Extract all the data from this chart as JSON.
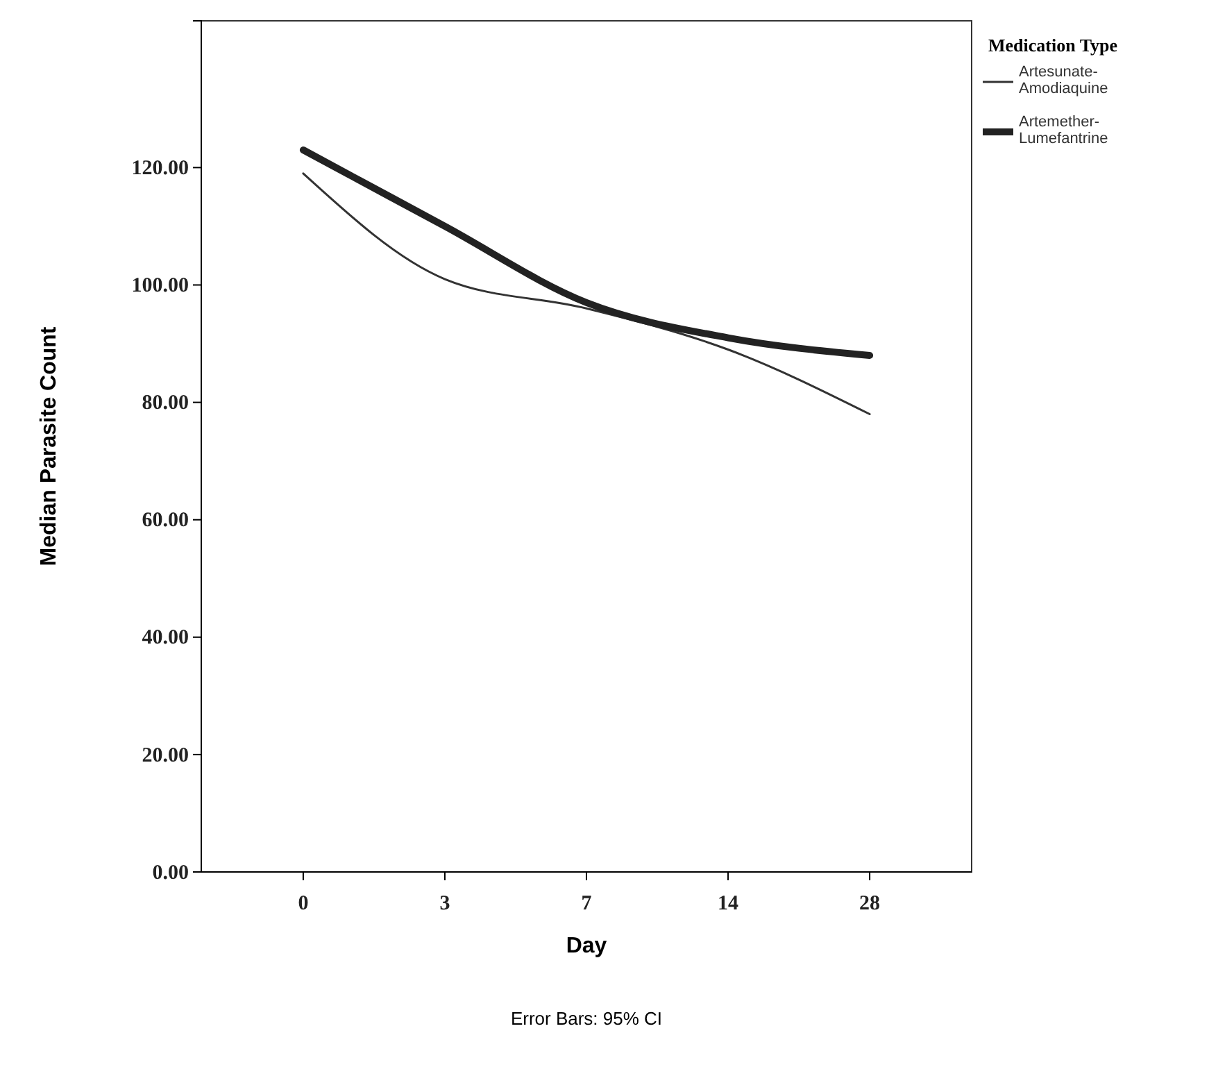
{
  "chart_data": {
    "type": "line",
    "xlabel": "Day",
    "ylabel": "Median Parasite Count",
    "legend_title": "Medication Type",
    "categories": [
      "0",
      "3",
      "7",
      "14",
      "28"
    ],
    "series": [
      {
        "name": "Artesunate-Amodiaquine",
        "color": "#333333",
        "values": [
          119,
          101,
          96,
          89,
          78
        ]
      },
      {
        "name": "Artemether-Lumefantrine",
        "color": "#222222",
        "values": [
          123,
          110,
          97,
          91,
          88
        ]
      }
    ],
    "ylim": [
      0,
      145
    ],
    "yticks": [
      {
        "value": 0,
        "label": "0.00"
      },
      {
        "value": 20,
        "label": "20.00"
      },
      {
        "value": 40,
        "label": "40.00"
      },
      {
        "value": 60,
        "label": "60.00"
      },
      {
        "value": 80,
        "label": "80.00"
      },
      {
        "value": 100,
        "label": "100.00"
      },
      {
        "value": 120,
        "label": "120.00"
      }
    ],
    "legend": "right",
    "marker": "none",
    "line_style": "solid",
    "annotations": [
      "Error Bars: 95% CI"
    ]
  }
}
